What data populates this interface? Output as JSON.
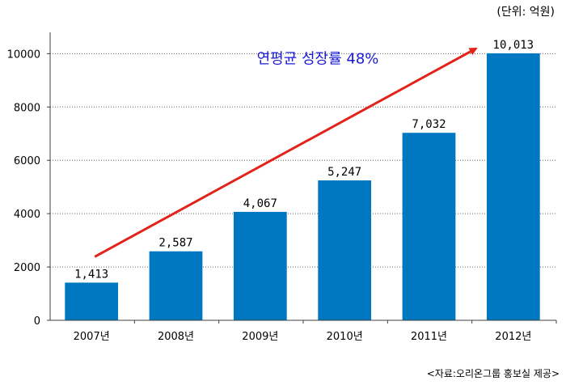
{
  "unit_label": "(단위: 억원)",
  "source_label": "<자료:오리온그룹 홍보실 제공>",
  "colors": {
    "bar": "#0077c1",
    "arrow": "#e32219",
    "annotation_text": "#1a1ad6",
    "grid": "#606060",
    "axis": "#404040"
  },
  "chart_data": {
    "type": "bar",
    "categories": [
      "2007년",
      "2008년",
      "2009년",
      "2010년",
      "2011년",
      "2012년"
    ],
    "values": [
      1413,
      2587,
      4067,
      5247,
      7032,
      10013
    ],
    "value_labels": [
      "1,413",
      "2,587",
      "4,067",
      "5,247",
      "7,032",
      "10,013"
    ],
    "title": "",
    "xlabel": "",
    "ylabel": "",
    "ylim": [
      0,
      10800
    ],
    "yticks": [
      0,
      2000,
      4000,
      6000,
      8000,
      10000
    ],
    "grid": "horizontal dotted",
    "annotation": {
      "text": "연평균 성장률 48%",
      "arrow": "from first bar to last bar"
    }
  }
}
